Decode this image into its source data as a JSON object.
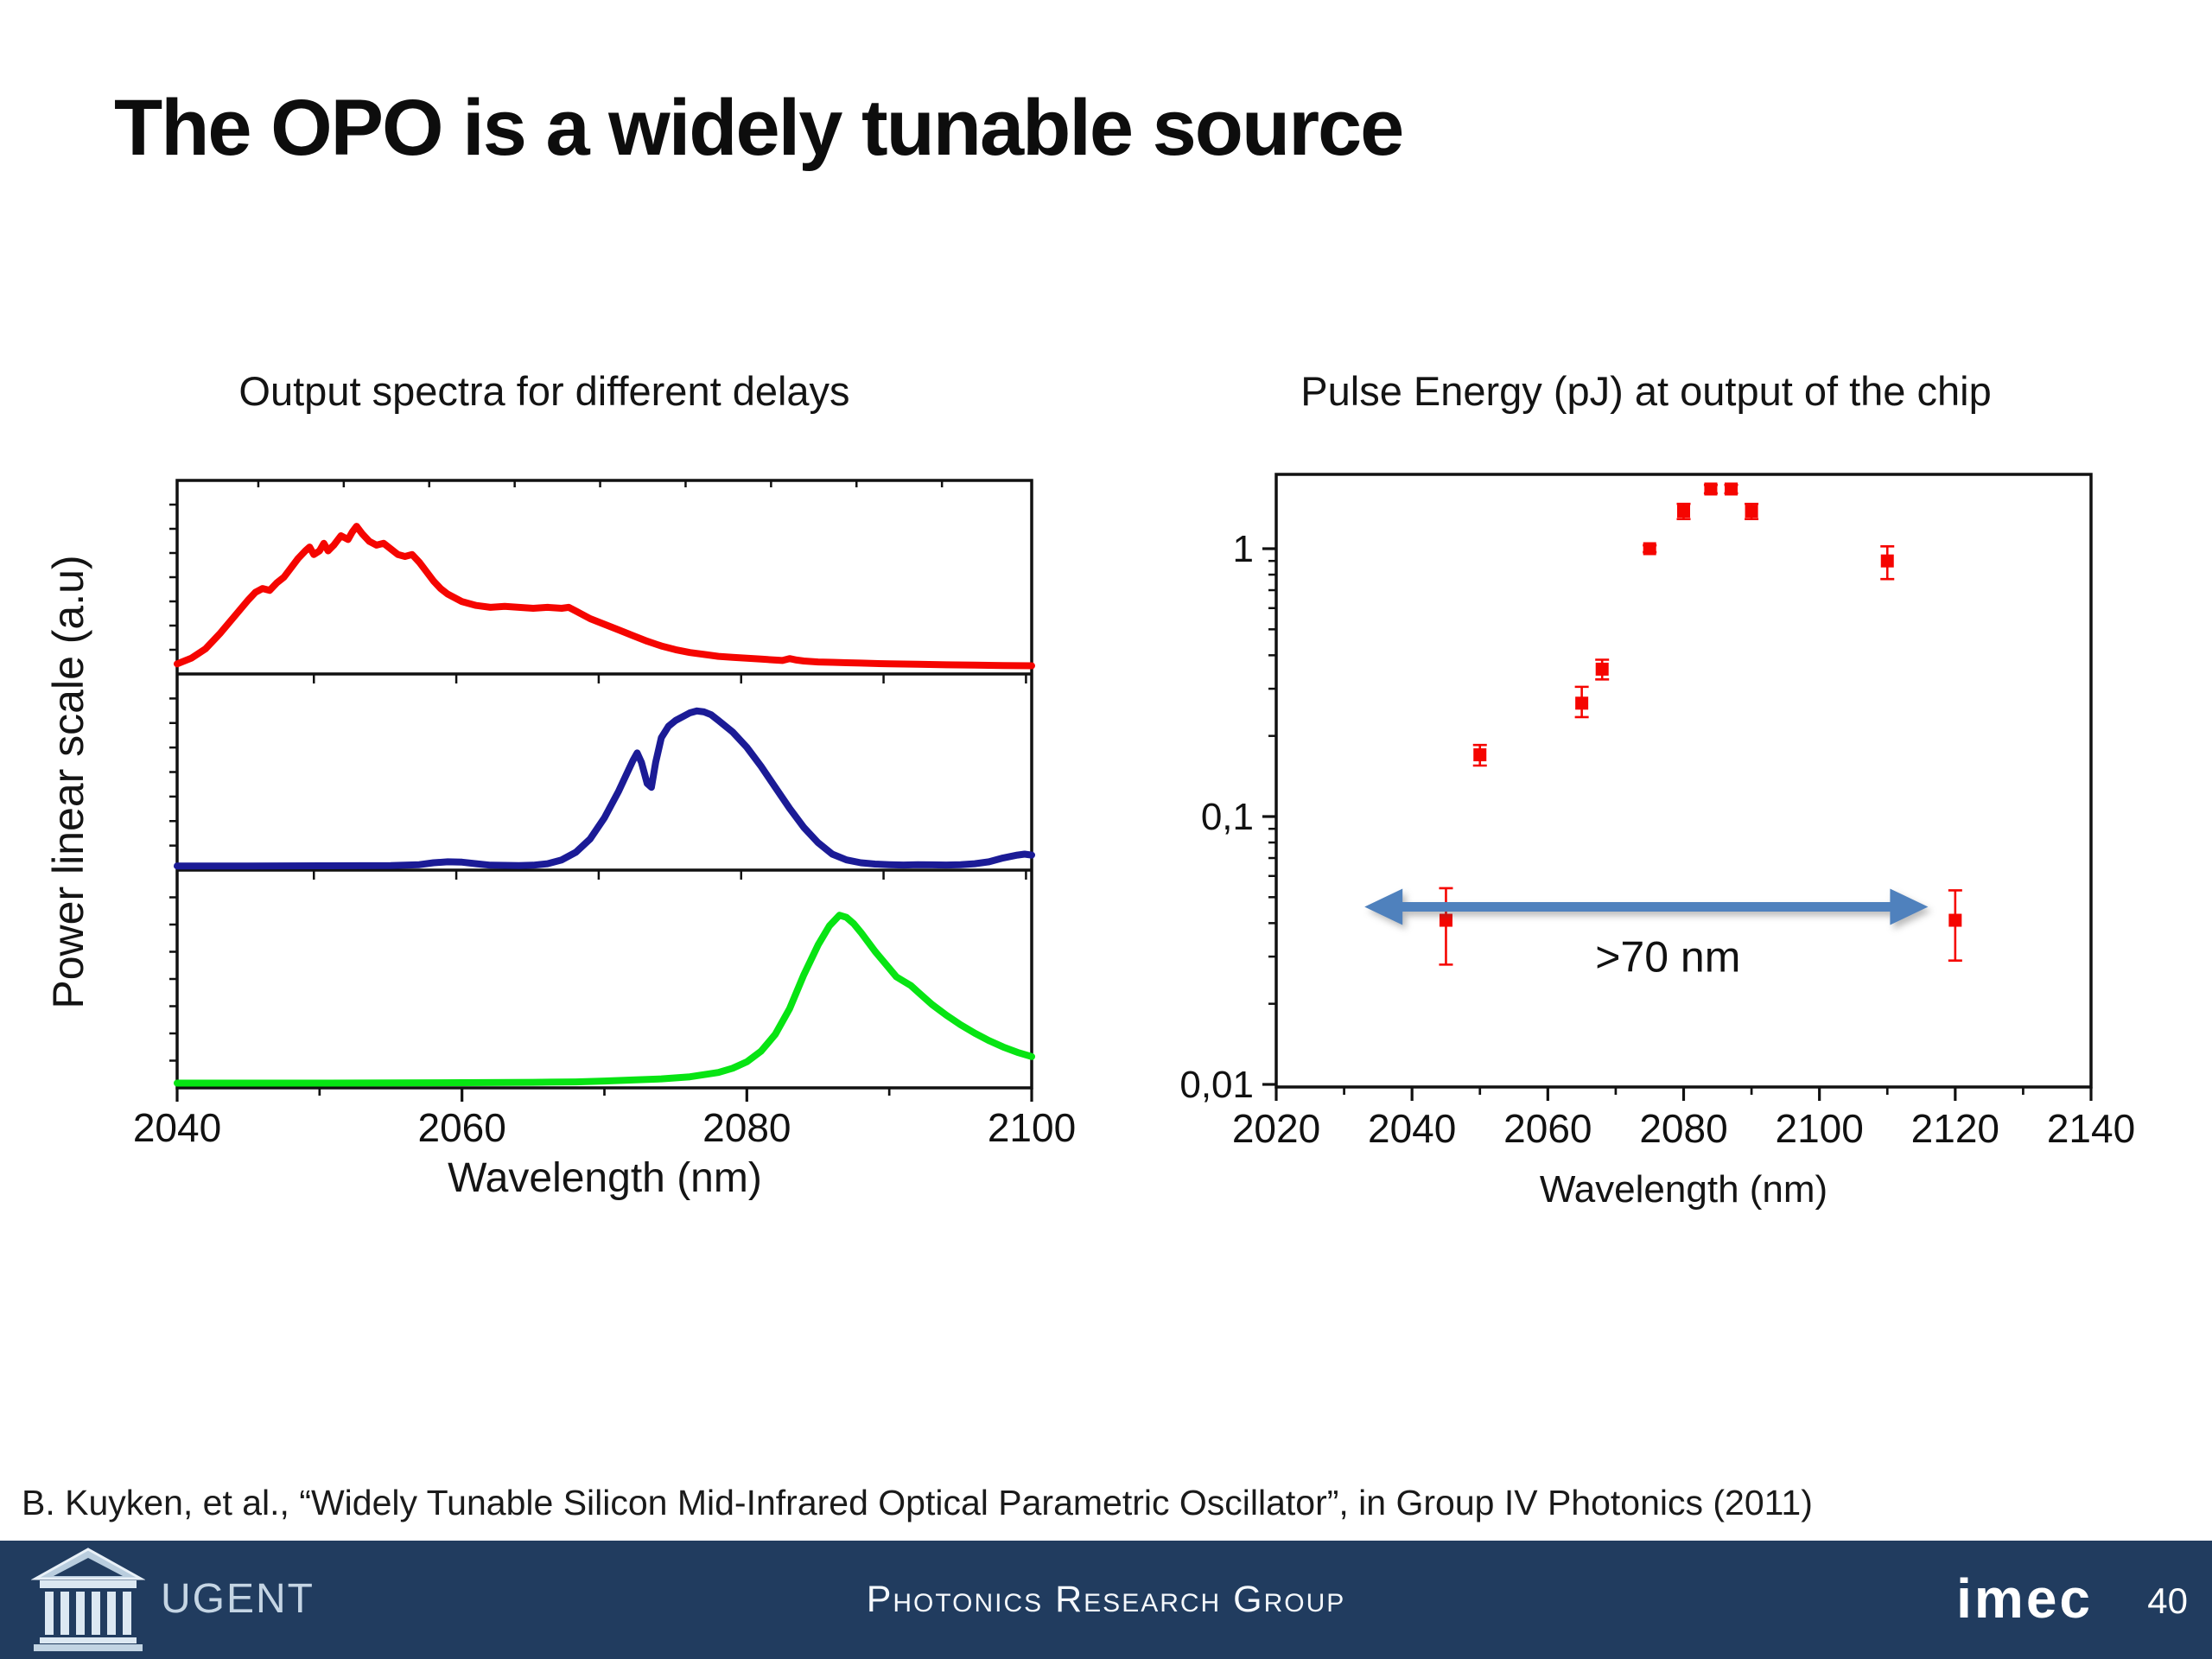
{
  "slide": {
    "title": "The OPO is a widely tunable source"
  },
  "citation": "B. Kuyken, et al., “Widely Tunable Silicon Mid-Infrared Optical Parametric Oscillator”, in Group IV Photonics (2011)",
  "footer": {
    "ugent_label": "UGENT",
    "group": "Photonics Research Group",
    "imec_label": "imec",
    "page_number": "40",
    "bar_color": "#213c5f"
  },
  "chart_data": [
    {
      "id": "spectra",
      "type": "line",
      "title": "Output spectra for different delays",
      "xlabel": "Wavelength (nm)",
      "ylabel": "Power linear scale (a.u)",
      "xlim": [
        2040,
        2100
      ],
      "xticks": [
        2040,
        2060,
        2080,
        2100
      ],
      "xminor": [
        2050,
        2070,
        2090
      ],
      "top_ticks": [
        2045.7,
        2051.7,
        2057.7,
        2063.7,
        2069.7,
        2075.7,
        2081.7,
        2087.7,
        2093.7
      ],
      "sep_ticks": [
        2049.6,
        2059.6,
        2069.6,
        2079.6,
        2089.6,
        2099.6
      ],
      "grid": false,
      "legend": "none (three stacked panels)",
      "series": [
        {
          "name": "spectrum delay 1 (red, top panel)",
          "color": "#f50500",
          "panel": 0,
          "points": [
            [
              2040,
              0.04
            ],
            [
              2041,
              0.07
            ],
            [
              2042,
              0.12
            ],
            [
              2043,
              0.2
            ],
            [
              2044,
              0.29
            ],
            [
              2045,
              0.38
            ],
            [
              2045.5,
              0.42
            ],
            [
              2046,
              0.44
            ],
            [
              2046.5,
              0.43
            ],
            [
              2047,
              0.47
            ],
            [
              2047.5,
              0.5
            ],
            [
              2048,
              0.55
            ],
            [
              2048.5,
              0.6
            ],
            [
              2049,
              0.64
            ],
            [
              2049.3,
              0.66
            ],
            [
              2049.6,
              0.62
            ],
            [
              2050,
              0.64
            ],
            [
              2050.3,
              0.68
            ],
            [
              2050.6,
              0.64
            ],
            [
              2051,
              0.67
            ],
            [
              2051.5,
              0.72
            ],
            [
              2052,
              0.7
            ],
            [
              2052.3,
              0.74
            ],
            [
              2052.6,
              0.77
            ],
            [
              2053,
              0.73
            ],
            [
              2053.5,
              0.69
            ],
            [
              2054,
              0.67
            ],
            [
              2054.5,
              0.68
            ],
            [
              2055,
              0.65
            ],
            [
              2055.5,
              0.62
            ],
            [
              2056,
              0.61
            ],
            [
              2056.5,
              0.62
            ],
            [
              2057,
              0.58
            ],
            [
              2057.5,
              0.53
            ],
            [
              2058,
              0.48
            ],
            [
              2058.5,
              0.44
            ],
            [
              2059,
              0.41
            ],
            [
              2060,
              0.37
            ],
            [
              2061,
              0.35
            ],
            [
              2062,
              0.34
            ],
            [
              2063,
              0.345
            ],
            [
              2064,
              0.34
            ],
            [
              2065,
              0.335
            ],
            [
              2066,
              0.34
            ],
            [
              2067,
              0.335
            ],
            [
              2067.5,
              0.34
            ],
            [
              2068,
              0.32
            ],
            [
              2069,
              0.28
            ],
            [
              2070,
              0.25
            ],
            [
              2071,
              0.22
            ],
            [
              2072,
              0.19
            ],
            [
              2073,
              0.16
            ],
            [
              2074,
              0.135
            ],
            [
              2075,
              0.115
            ],
            [
              2076,
              0.1
            ],
            [
              2077,
              0.09
            ],
            [
              2078,
              0.08
            ],
            [
              2079,
              0.075
            ],
            [
              2080,
              0.07
            ],
            [
              2081,
              0.065
            ],
            [
              2082,
              0.06
            ],
            [
              2082.5,
              0.058
            ],
            [
              2083,
              0.068
            ],
            [
              2083.5,
              0.06
            ],
            [
              2084,
              0.055
            ],
            [
              2085,
              0.05
            ],
            [
              2086,
              0.048
            ],
            [
              2087,
              0.046
            ],
            [
              2088,
              0.044
            ],
            [
              2090,
              0.04
            ],
            [
              2092,
              0.038
            ],
            [
              2094,
              0.035
            ],
            [
              2096,
              0.033
            ],
            [
              2098,
              0.031
            ],
            [
              2100,
              0.03
            ]
          ]
        },
        {
          "name": "spectrum delay 2 (dark blue, middle panel)",
          "color": "#1b1b96",
          "panel": 1,
          "points": [
            [
              2040,
              0.008
            ],
            [
              2045,
              0.008
            ],
            [
              2050,
              0.009
            ],
            [
              2055,
              0.01
            ],
            [
              2057,
              0.015
            ],
            [
              2058,
              0.025
            ],
            [
              2059,
              0.03
            ],
            [
              2060,
              0.028
            ],
            [
              2061,
              0.02
            ],
            [
              2062,
              0.012
            ],
            [
              2064,
              0.01
            ],
            [
              2065,
              0.012
            ],
            [
              2066,
              0.02
            ],
            [
              2067,
              0.04
            ],
            [
              2068,
              0.08
            ],
            [
              2069,
              0.15
            ],
            [
              2070,
              0.26
            ],
            [
              2070.5,
              0.33
            ],
            [
              2071,
              0.4
            ],
            [
              2071.5,
              0.48
            ],
            [
              2072,
              0.56
            ],
            [
              2072.3,
              0.6
            ],
            [
              2072.6,
              0.55
            ],
            [
              2073,
              0.44
            ],
            [
              2073.3,
              0.42
            ],
            [
              2073.6,
              0.55
            ],
            [
              2074,
              0.68
            ],
            [
              2074.5,
              0.74
            ],
            [
              2075,
              0.77
            ],
            [
              2076,
              0.81
            ],
            [
              2076.5,
              0.82
            ],
            [
              2077,
              0.815
            ],
            [
              2077.5,
              0.8
            ],
            [
              2078,
              0.77
            ],
            [
              2079,
              0.71
            ],
            [
              2080,
              0.63
            ],
            [
              2081,
              0.53
            ],
            [
              2082,
              0.42
            ],
            [
              2083,
              0.31
            ],
            [
              2084,
              0.21
            ],
            [
              2085,
              0.13
            ],
            [
              2086,
              0.07
            ],
            [
              2087,
              0.04
            ],
            [
              2088,
              0.025
            ],
            [
              2089,
              0.018
            ],
            [
              2090,
              0.015
            ],
            [
              2091,
              0.013
            ],
            [
              2092,
              0.015
            ],
            [
              2093,
              0.014
            ],
            [
              2094,
              0.013
            ],
            [
              2095,
              0.015
            ],
            [
              2096,
              0.02
            ],
            [
              2097,
              0.03
            ],
            [
              2098,
              0.05
            ],
            [
              2099,
              0.065
            ],
            [
              2099.5,
              0.07
            ],
            [
              2100,
              0.065
            ]
          ]
        },
        {
          "name": "spectrum delay 3 (green, bottom panel)",
          "color": "#07e413",
          "panel": 2,
          "points": [
            [
              2040,
              0.01
            ],
            [
              2050,
              0.01
            ],
            [
              2060,
              0.012
            ],
            [
              2065,
              0.014
            ],
            [
              2068,
              0.016
            ],
            [
              2070,
              0.02
            ],
            [
              2072,
              0.025
            ],
            [
              2074,
              0.03
            ],
            [
              2076,
              0.04
            ],
            [
              2077,
              0.05
            ],
            [
              2078,
              0.06
            ],
            [
              2079,
              0.08
            ],
            [
              2080,
              0.11
            ],
            [
              2081,
              0.16
            ],
            [
              2082,
              0.24
            ],
            [
              2083,
              0.36
            ],
            [
              2084,
              0.52
            ],
            [
              2085,
              0.66
            ],
            [
              2085.8,
              0.75
            ],
            [
              2086.5,
              0.8
            ],
            [
              2087,
              0.79
            ],
            [
              2087.5,
              0.76
            ],
            [
              2088,
              0.72
            ],
            [
              2089,
              0.63
            ],
            [
              2090,
              0.55
            ],
            [
              2090.5,
              0.51
            ],
            [
              2091,
              0.49
            ],
            [
              2091.5,
              0.47
            ],
            [
              2092,
              0.44
            ],
            [
              2093,
              0.38
            ],
            [
              2094,
              0.33
            ],
            [
              2095,
              0.285
            ],
            [
              2096,
              0.245
            ],
            [
              2097,
              0.21
            ],
            [
              2098,
              0.18
            ],
            [
              2099,
              0.155
            ],
            [
              2100,
              0.135
            ]
          ]
        }
      ]
    },
    {
      "id": "pulse_energy",
      "type": "scatter",
      "title": "Pulse Energy (pJ) at output of the chip",
      "xlabel": "Wavelength (nm)",
      "ylabel": "",
      "xlim": [
        2020,
        2140
      ],
      "xticks": [
        2020,
        2040,
        2060,
        2080,
        2100,
        2120,
        2140
      ],
      "xminor": [
        2030,
        2050,
        2070,
        2090,
        2110,
        2130
      ],
      "y_scale": "log",
      "ylim": [
        0.01,
        1.9
      ],
      "yticks": [
        {
          "value": 1,
          "label": "1"
        },
        {
          "value": 0.1,
          "label": "0,1"
        },
        {
          "value": 0.01,
          "label": "0,01"
        }
      ],
      "grid": false,
      "marker": "square",
      "marker_color": "#f50500",
      "points": [
        {
          "wavelength_nm": 2045,
          "energy_pj": 0.041,
          "err_up": 0.013,
          "err_down": 0.013
        },
        {
          "wavelength_nm": 2050,
          "energy_pj": 0.17,
          "err_up": 0.015,
          "err_down": 0.015
        },
        {
          "wavelength_nm": 2065,
          "energy_pj": 0.265,
          "err_up": 0.04,
          "err_down": 0.03
        },
        {
          "wavelength_nm": 2068,
          "energy_pj": 0.355,
          "err_up": 0.03,
          "err_down": 0.03
        },
        {
          "wavelength_nm": 2075,
          "energy_pj": 1.0,
          "err_up": 0.03,
          "err_down": 0.03
        },
        {
          "wavelength_nm": 2080,
          "energy_pj": 1.38,
          "err_up": 0.09,
          "err_down": 0.09
        },
        {
          "wavelength_nm": 2084,
          "energy_pj": 1.67,
          "err_up": 0.06,
          "err_down": 0.06
        },
        {
          "wavelength_nm": 2087,
          "energy_pj": 1.67,
          "err_up": 0.06,
          "err_down": 0.06
        },
        {
          "wavelength_nm": 2090,
          "energy_pj": 1.38,
          "err_up": 0.09,
          "err_down": 0.09
        },
        {
          "wavelength_nm": 2110,
          "energy_pj": 0.9,
          "err_up": 0.12,
          "err_down": 0.13
        },
        {
          "wavelength_nm": 2120,
          "energy_pj": 0.041,
          "err_up": 0.012,
          "err_down": 0.012
        }
      ],
      "annotation": {
        "label": ">70 nm",
        "arrow_from_nm": 2033,
        "arrow_to_nm": 2116,
        "arrow_y_pj": 0.046,
        "arrow_color": "#4f81bd"
      }
    }
  ]
}
